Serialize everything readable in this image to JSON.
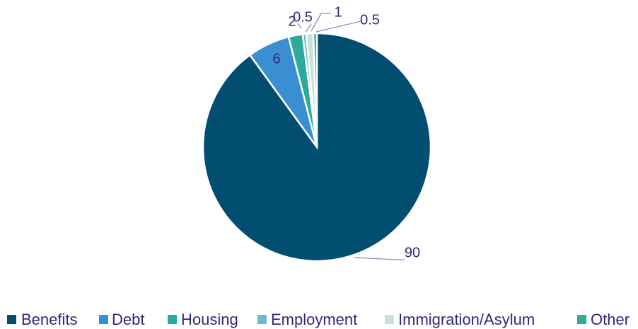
{
  "chart_data": {
    "type": "pie",
    "categories": [
      "Benefits",
      "Debt",
      "Housing",
      "Employment",
      "Immigration/Asylum",
      "Other"
    ],
    "values": [
      90,
      6,
      2,
      0.5,
      1,
      0.5
    ],
    "colors": [
      "#024e70",
      "#3a8fd3",
      "#2eaa9d",
      "#6cb9d2",
      "#c6e2d9",
      "#37a99b"
    ],
    "legend": "bottom"
  }
}
